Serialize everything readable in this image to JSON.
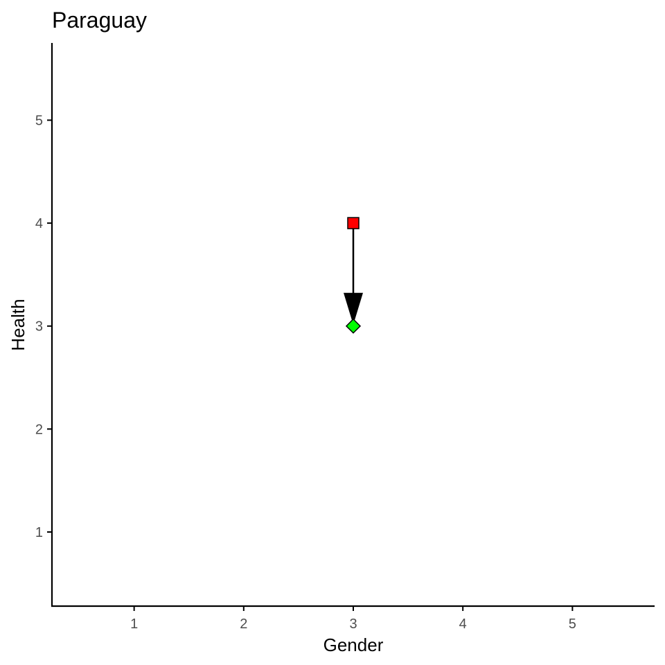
{
  "chart_data": {
    "type": "scatter",
    "title": "Paraguay",
    "xlabel": "Gender",
    "ylabel": "Health",
    "xlim": [
      0.25,
      5.75
    ],
    "ylim": [
      0.28,
      5.75
    ],
    "xticks": [
      1,
      2,
      3,
      4,
      5
    ],
    "yticks": [
      1,
      2,
      3,
      4,
      5
    ],
    "grid": false,
    "points": [
      {
        "x": 3,
        "y": 4,
        "shape": "square",
        "color": "#ff0000"
      },
      {
        "x": 3,
        "y": 3,
        "shape": "diamond",
        "color": "#00ff00"
      }
    ],
    "arrow": {
      "from": {
        "x": 3,
        "y": 4
      },
      "to": {
        "x": 3,
        "y": 3
      },
      "color": "#000000"
    }
  }
}
